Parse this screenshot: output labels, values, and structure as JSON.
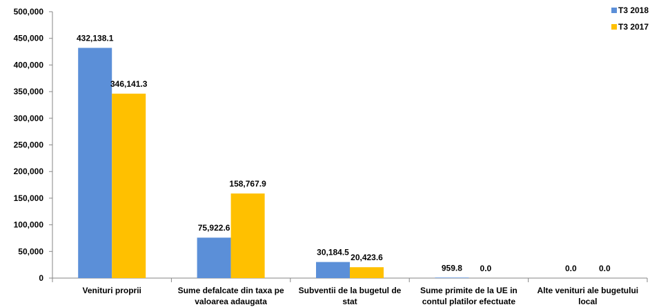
{
  "chart_data": {
    "type": "bar",
    "categories": [
      [
        "Venituri proprii"
      ],
      [
        "Sume defalcate din taxa pe",
        "valoarea adaugata"
      ],
      [
        "Subventii de la bugetul de",
        "stat"
      ],
      [
        "Sume primite de la UE in",
        "contul platilor efectuate"
      ],
      [
        "Alte venituri ale bugetului",
        "local"
      ]
    ],
    "series": [
      {
        "name": "T3 2018",
        "color": "#5B8FD8",
        "values": [
          432138.1,
          75922.6,
          30184.5,
          959.8,
          0.0
        ],
        "labels": [
          "432,138.1",
          "75,922.6",
          "30,184.5",
          "959.8",
          "0.0"
        ]
      },
      {
        "name": "T3 2017",
        "color": "#FFC000",
        "values": [
          346141.3,
          158767.9,
          20423.6,
          0.0,
          0.0
        ],
        "labels": [
          "346,141.3",
          "158,767.9",
          "20,423.6",
          "0.0",
          "0.0"
        ]
      }
    ],
    "ylim": [
      0,
      500000
    ],
    "yticks": [
      0,
      50000,
      100000,
      150000,
      200000,
      250000,
      300000,
      350000,
      400000,
      450000,
      500000
    ],
    "ytick_labels": [
      "0",
      "50,000",
      "100,000",
      "150,000",
      "200,000",
      "250,000",
      "300,000",
      "350,000",
      "400,000",
      "450,000",
      "500,000"
    ],
    "grid": false,
    "legend_position": "top-right"
  }
}
